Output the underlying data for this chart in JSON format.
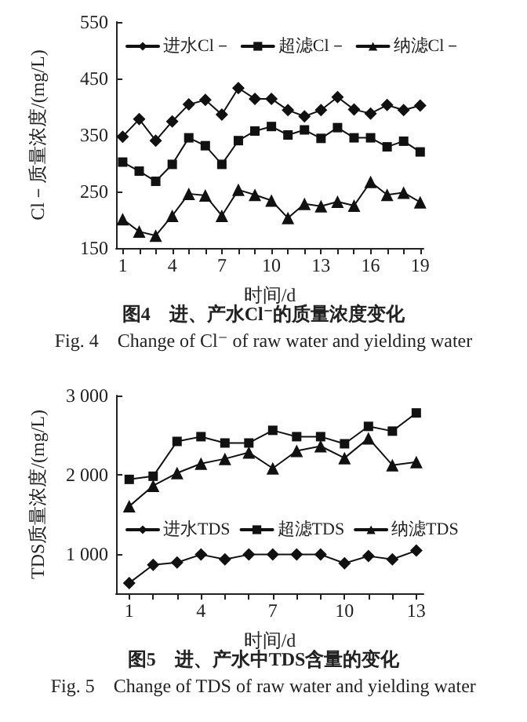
{
  "chart_data": [
    {
      "type": "line",
      "xlabel": "时间/d",
      "ylabel": "Cl－质量浓度/(mg/L)",
      "legend": "top",
      "grid": false,
      "annotations": [
        "图4　进、产水Cl⁻的质量浓度变化",
        "Fig. 4　Change of Cl⁻ of raw water and yielding water"
      ],
      "x": [
        1,
        2,
        3,
        4,
        5,
        6,
        7,
        8,
        9,
        10,
        11,
        12,
        13,
        14,
        15,
        16,
        17,
        18,
        19
      ],
      "xlim": [
        0.6,
        19.2
      ],
      "xticks": [
        1,
        {
          "value": 2,
          "label": null
        },
        {
          "value": 3,
          "label": null
        },
        4,
        {
          "value": 5,
          "label": null
        },
        {
          "value": 6,
          "label": null
        },
        7,
        {
          "value": 8,
          "label": null
        },
        {
          "value": 9,
          "label": null
        },
        10,
        {
          "value": 11,
          "label": null
        },
        {
          "value": 12,
          "label": null
        },
        13,
        {
          "value": 14,
          "label": null
        },
        {
          "value": 15,
          "label": null
        },
        16,
        {
          "value": 17,
          "label": null
        },
        {
          "value": 18,
          "label": null
        },
        19
      ],
      "ylim": [
        150,
        550
      ],
      "yticks": [
        150,
        250,
        350,
        450,
        550
      ],
      "series": [
        {
          "name": "进水Cl－",
          "color": "#111111",
          "marker": "diamond",
          "values": [
            347,
            378,
            340,
            374,
            404,
            412,
            386,
            433,
            414,
            414,
            394,
            383,
            394,
            417,
            395,
            388,
            403,
            394,
            402
          ]
        },
        {
          "name": "超滤Cl－",
          "color": "#111111",
          "marker": "square",
          "values": [
            302,
            286,
            268,
            298,
            345,
            331,
            298,
            340,
            357,
            365,
            350,
            359,
            344,
            363,
            345,
            345,
            329,
            339,
            320
          ]
        },
        {
          "name": "纳滤Cl－",
          "color": "#111111",
          "marker": "triangle",
          "values": [
            201,
            179,
            172,
            207,
            246,
            243,
            207,
            253,
            244,
            234,
            203,
            228,
            224,
            232,
            225,
            267,
            244,
            248,
            231
          ]
        }
      ]
    },
    {
      "type": "line",
      "xlabel": "时间/d",
      "ylabel": "TDS质量浓度/(mg/L)",
      "legend": "bottom",
      "grid": false,
      "annotations": [
        "图5　进、产水中TDS含量的变化",
        "Fig. 5　Change of TDS of raw water and yielding water"
      ],
      "x": [
        1,
        2,
        3,
        4,
        5,
        6,
        7,
        8,
        9,
        10,
        11,
        12,
        13
      ],
      "xlim": [
        0.45,
        13.3
      ],
      "xticks": [
        1,
        {
          "value": 2,
          "label": null
        },
        {
          "value": 3,
          "label": null
        },
        4,
        {
          "value": 5,
          "label": null
        },
        {
          "value": 6,
          "label": null
        },
        7,
        {
          "value": 8,
          "label": null
        },
        {
          "value": 9,
          "label": null
        },
        10,
        {
          "value": 11,
          "label": null
        },
        {
          "value": 12,
          "label": null
        },
        13
      ],
      "ylim": [
        500,
        3000
      ],
      "yticks": [
        {
          "value": 1000,
          "label": "1 000"
        },
        {
          "value": 2000,
          "label": "2 000"
        },
        {
          "value": 3000,
          "label": "3 000"
        }
      ],
      "series": [
        {
          "name": "进水TDS",
          "color": "#111111",
          "marker": "diamond",
          "values": [
            630,
            860,
            890,
            990,
            930,
            990,
            990,
            990,
            990,
            880,
            970,
            930,
            1040
          ]
        },
        {
          "name": "超滤TDS",
          "color": "#111111",
          "marker": "square",
          "values": [
            1940,
            1980,
            2420,
            2480,
            2400,
            2400,
            2560,
            2480,
            2480,
            2390,
            2610,
            2550,
            2780
          ]
        },
        {
          "name": "纳滤TDS",
          "color": "#111111",
          "marker": "triangle",
          "values": [
            1600,
            1860,
            2020,
            2140,
            2200,
            2280,
            2080,
            2300,
            2360,
            2210,
            2460,
            2120,
            2160
          ]
        }
      ]
    }
  ]
}
